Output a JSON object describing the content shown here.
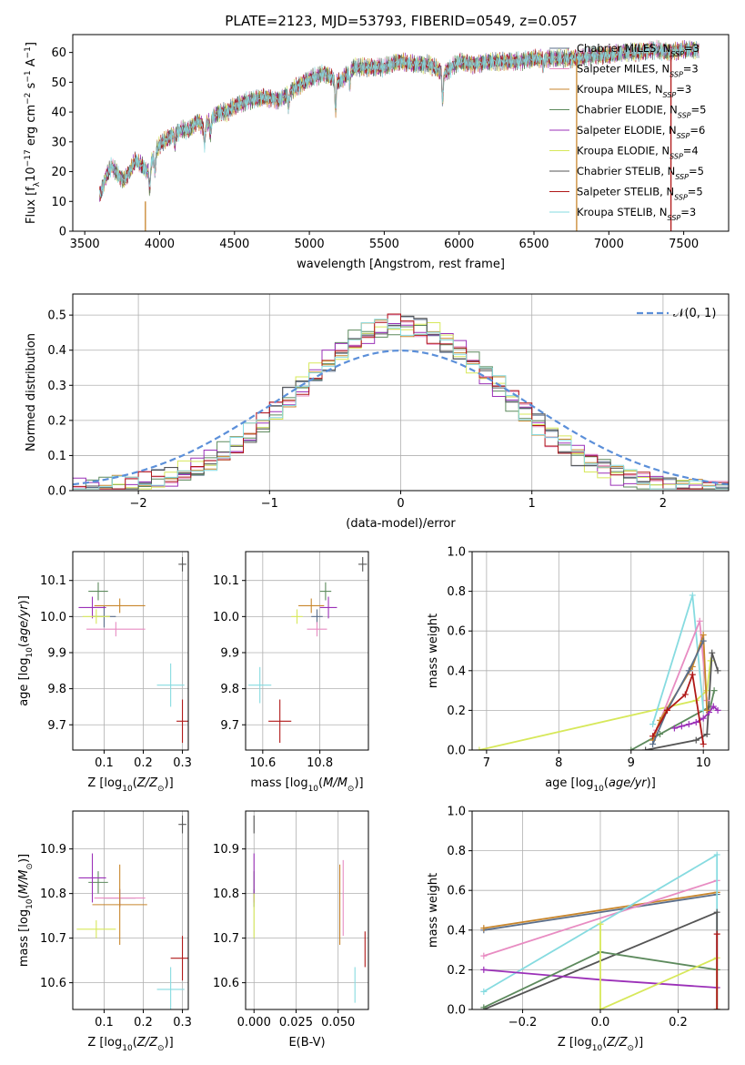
{
  "figure": {
    "title": "PLATE=2123, MJD=53793, FIBERID=0549, z=0.057"
  },
  "colors": {
    "Chabrier MILES": "#5a6e8a",
    "Salpeter MILES": "#e88cc2",
    "Kroupa MILES": "#c8862c",
    "Chabrier ELODIE": "#5d8a5d",
    "Salpeter ELODIE": "#9b30b8",
    "Kroupa ELODIE": "#d7e85a",
    "Chabrier STELIB": "#555555",
    "Salpeter STELIB": "#b01818",
    "Kroupa STELIB": "#86dbe0",
    "gauss": "#5b8fd9"
  },
  "chart_data": [
    {
      "id": "spectrum",
      "type": "line",
      "title": "PLATE=2123, MJD=53793, FIBERID=0549, z=0.057",
      "xlabel": "wavelength [Angstrom, rest frame]",
      "ylabel": "Flux [f_λ 10^-17 erg cm^-2 s^-1 A^-1]",
      "xlim": [
        3420,
        7800
      ],
      "ylim": [
        0,
        66
      ],
      "xticks": [
        3500,
        4000,
        4500,
        5000,
        5500,
        6000,
        6500,
        7000,
        7500
      ],
      "yticks": [
        0,
        10,
        20,
        30,
        40,
        50,
        60
      ],
      "legend_position": "upper right",
      "series": [
        {
          "name": "Chabrier MILES",
          "label_prefix": "Chabrier MILES, N",
          "label_sub": "SSP",
          "label_suffix": "=3"
        },
        {
          "name": "Salpeter MILES",
          "label_prefix": "Salpeter MILES, N",
          "label_sub": "SSP",
          "label_suffix": "=3"
        },
        {
          "name": "Kroupa MILES",
          "label_prefix": "Kroupa MILES, N",
          "label_sub": "SSP",
          "label_suffix": "=3"
        },
        {
          "name": "Chabrier ELODIE",
          "label_prefix": "Chabrier ELODIE, N",
          "label_sub": "SSP",
          "label_suffix": "=5"
        },
        {
          "name": "Salpeter ELODIE",
          "label_prefix": "Salpeter ELODIE, N",
          "label_sub": "SSP",
          "label_suffix": "=6"
        },
        {
          "name": "Kroupa ELODIE",
          "label_prefix": "Kroupa ELODIE, N",
          "label_sub": "SSP",
          "label_suffix": "=4"
        },
        {
          "name": "Chabrier STELIB",
          "label_prefix": "Chabrier STELIB, N",
          "label_sub": "SSP",
          "label_suffix": "=5"
        },
        {
          "name": "Salpeter STELIB",
          "label_prefix": "Salpeter STELIB, N",
          "label_sub": "SSP",
          "label_suffix": "=5"
        },
        {
          "name": "Kroupa STELIB",
          "label_prefix": "Kroupa STELIB, N",
          "label_sub": "SSP",
          "label_suffix": "=3"
        }
      ],
      "continuum": [
        [
          3600,
          12
        ],
        [
          3640,
          18
        ],
        [
          3680,
          22
        ],
        [
          3720,
          19
        ],
        [
          3760,
          17
        ],
        [
          3800,
          20
        ],
        [
          3840,
          24
        ],
        [
          3880,
          22
        ],
        [
          3920,
          20
        ],
        [
          3960,
          25
        ],
        [
          4000,
          29
        ],
        [
          4050,
          31
        ],
        [
          4100,
          33
        ],
        [
          4150,
          34
        ],
        [
          4200,
          34
        ],
        [
          4250,
          37
        ],
        [
          4300,
          35
        ],
        [
          4350,
          38
        ],
        [
          4400,
          40
        ],
        [
          4450,
          40
        ],
        [
          4500,
          42
        ],
        [
          4600,
          44
        ],
        [
          4700,
          45
        ],
        [
          4800,
          44
        ],
        [
          4900,
          48
        ],
        [
          5000,
          51
        ],
        [
          5100,
          53
        ],
        [
          5200,
          50
        ],
        [
          5300,
          55
        ],
        [
          5400,
          55
        ],
        [
          5500,
          55
        ],
        [
          5600,
          57
        ],
        [
          5700,
          56
        ],
        [
          5800,
          56
        ],
        [
          5900,
          53
        ],
        [
          6000,
          57
        ],
        [
          6100,
          56
        ],
        [
          6200,
          57
        ],
        [
          6300,
          57
        ],
        [
          6400,
          57
        ],
        [
          6500,
          58
        ],
        [
          6600,
          58
        ],
        [
          6700,
          58
        ],
        [
          6800,
          58
        ],
        [
          6900,
          59
        ],
        [
          7000,
          59
        ],
        [
          7100,
          60
        ],
        [
          7200,
          60
        ],
        [
          7300,
          61
        ],
        [
          7400,
          60
        ],
        [
          7500,
          61
        ],
        [
          7600,
          61
        ]
      ],
      "absorption_lines": [
        [
          3934,
          8
        ],
        [
          3969,
          6
        ],
        [
          4102,
          4
        ],
        [
          4300,
          6
        ],
        [
          4340,
          5
        ],
        [
          4861,
          5
        ],
        [
          5175,
          10
        ],
        [
          5270,
          4
        ],
        [
          5890,
          10
        ],
        [
          6563,
          3
        ]
      ],
      "drop_lines": [
        {
          "series": "Kroupa MILES",
          "x": 3905,
          "ymin": 0,
          "ymax": 10
        },
        {
          "series": "Kroupa MILES",
          "x": 6785,
          "ymin": 0,
          "ymax": 58
        },
        {
          "series": "Salpeter STELIB",
          "x": 7415,
          "ymin": 0,
          "ymax": 61
        }
      ]
    },
    {
      "id": "residual-hist",
      "type": "histogram",
      "xlabel": "(data-model)/error",
      "ylabel": "Normed distribution",
      "xlim": [
        -2.5,
        2.5
      ],
      "ylim": [
        0,
        0.56
      ],
      "xticks": [
        -2,
        -1,
        0,
        1,
        2
      ],
      "yticks": [
        0,
        0.1,
        0.2,
        0.3,
        0.4,
        0.5
      ],
      "grid": true,
      "legend_position": "upper right",
      "gaussian": {
        "label": "𝒩(0, 1)",
        "mu": 0,
        "sigma": 1
      },
      "bin_width": 0.1,
      "bins_start": -2.5,
      "bins_end": 2.5
    },
    {
      "id": "age-vs-Z",
      "type": "errorbar",
      "xlabel": "Z [log10(Z/Z⊙)]",
      "ylabel": "age  [log10(age/yr)]",
      "xlim": [
        0.02,
        0.315
      ],
      "ylim": [
        9.63,
        10.18
      ],
      "xticks": [
        0.1,
        0.2,
        0.3
      ],
      "yticks": [
        9.7,
        9.8,
        9.9,
        10.0,
        10.1
      ],
      "grid": true,
      "points": [
        {
          "series": "Chabrier MILES",
          "x": 0.1,
          "y": 10.0,
          "xerr": 0.03,
          "yerr": 0.03
        },
        {
          "series": "Salpeter MILES",
          "x": 0.13,
          "y": 9.965,
          "xerr": 0.075,
          "yerr": 0.02
        },
        {
          "series": "Kroupa MILES",
          "x": 0.14,
          "y": 10.03,
          "xerr": 0.065,
          "yerr": 0.02
        },
        {
          "series": "Chabrier ELODIE",
          "x": 0.085,
          "y": 10.07,
          "xerr": 0.025,
          "yerr": 0.025
        },
        {
          "series": "Salpeter ELODIE",
          "x": 0.07,
          "y": 10.025,
          "xerr": 0.035,
          "yerr": 0.03
        },
        {
          "series": "Kroupa ELODIE",
          "x": 0.08,
          "y": 10.0,
          "xerr": 0.035,
          "yerr": 0.02
        },
        {
          "series": "Chabrier STELIB",
          "x": 0.3,
          "y": 10.145,
          "xerr": 0.01,
          "yerr": 0.02
        },
        {
          "series": "Salpeter STELIB",
          "x": 0.3,
          "y": 9.71,
          "xerr": 0.015,
          "yerr": 0.06
        },
        {
          "series": "Kroupa STELIB",
          "x": 0.27,
          "y": 9.81,
          "xerr": 0.035,
          "yerr": 0.06
        }
      ]
    },
    {
      "id": "age-vs-mass",
      "type": "errorbar",
      "xlabel": "mass [log10(M/M⊙)]",
      "ylabel": "",
      "xlim": [
        10.54,
        10.97
      ],
      "ylim": [
        9.63,
        10.18
      ],
      "xticks": [
        10.6,
        10.8
      ],
      "yticks": [
        9.7,
        9.8,
        9.9,
        10.0,
        10.1
      ],
      "grid": true,
      "points": [
        {
          "series": "Chabrier MILES",
          "x": 10.79,
          "y": 10.0,
          "xerr": 0.02,
          "yerr": 0.02
        },
        {
          "series": "Salpeter MILES",
          "x": 10.79,
          "y": 9.965,
          "xerr": 0.035,
          "yerr": 0.02
        },
        {
          "series": "Kroupa MILES",
          "x": 10.77,
          "y": 10.03,
          "xerr": 0.045,
          "yerr": 0.02
        },
        {
          "series": "Chabrier ELODIE",
          "x": 10.82,
          "y": 10.07,
          "xerr": 0.02,
          "yerr": 0.025
        },
        {
          "series": "Salpeter ELODIE",
          "x": 10.83,
          "y": 10.025,
          "xerr": 0.03,
          "yerr": 0.03
        },
        {
          "series": "Kroupa ELODIE",
          "x": 10.72,
          "y": 10.0,
          "xerr": 0.02,
          "yerr": 0.02
        },
        {
          "series": "Chabrier STELIB",
          "x": 10.95,
          "y": 10.145,
          "xerr": 0.015,
          "yerr": 0.02
        },
        {
          "series": "Salpeter STELIB",
          "x": 10.66,
          "y": 9.71,
          "xerr": 0.04,
          "yerr": 0.06
        },
        {
          "series": "Kroupa STELIB",
          "x": 10.59,
          "y": 9.81,
          "xerr": 0.04,
          "yerr": 0.05
        }
      ]
    },
    {
      "id": "mass-weight-vs-age",
      "type": "line",
      "xlabel": "age  [log10(age/yr)]",
      "ylabel": "mass weight",
      "xlim": [
        6.8,
        10.35
      ],
      "ylim": [
        0,
        1.0
      ],
      "xticks": [
        7,
        8,
        9,
        10
      ],
      "yticks": [
        0.0,
        0.2,
        0.4,
        0.6,
        0.8,
        1.0
      ],
      "grid": true,
      "series": [
        {
          "name": "Kroupa ELODIE",
          "x": [
            6.9,
            9.9,
            10.05,
            10.1
          ],
          "y": [
            0.0,
            0.25,
            0.3,
            0.45
          ]
        },
        {
          "name": "Chabrier ELODIE",
          "x": [
            9.0,
            9.4,
            10.1,
            10.15
          ],
          "y": [
            0.0,
            0.08,
            0.22,
            0.3
          ]
        },
        {
          "name": "Chabrier STELIB",
          "x": [
            9.2,
            9.9,
            10.05,
            10.12,
            10.2
          ],
          "y": [
            0.0,
            0.05,
            0.08,
            0.49,
            0.4
          ]
        },
        {
          "name": "Salpeter ELODIE",
          "x": [
            9.6,
            9.7,
            9.8,
            9.9,
            10.0,
            10.08,
            10.14,
            10.2
          ],
          "y": [
            0.11,
            0.12,
            0.13,
            0.14,
            0.16,
            0.19,
            0.22,
            0.2
          ]
        },
        {
          "name": "Kroupa STELIB",
          "x": [
            9.3,
            9.85,
            10.0
          ],
          "y": [
            0.13,
            0.78,
            0.2
          ]
        },
        {
          "name": "Salpeter MILES",
          "x": [
            9.35,
            9.95,
            10.05
          ],
          "y": [
            0.1,
            0.65,
            0.25
          ]
        },
        {
          "name": "Kroupa MILES",
          "x": [
            9.3,
            9.4,
            9.85,
            10.0,
            10.05
          ],
          "y": [
            0.05,
            0.15,
            0.42,
            0.58,
            0.2
          ]
        },
        {
          "name": "Chabrier MILES",
          "x": [
            9.3,
            9.5,
            9.8,
            10.0
          ],
          "y": [
            0.03,
            0.2,
            0.4,
            0.55
          ]
        },
        {
          "name": "Salpeter STELIB",
          "x": [
            9.3,
            9.5,
            9.75,
            9.85,
            10.0
          ],
          "y": [
            0.07,
            0.2,
            0.28,
            0.38,
            0.03
          ]
        }
      ]
    },
    {
      "id": "mass-vs-Z",
      "type": "errorbar",
      "xlabel": "Z [log10(Z/Z⊙)]",
      "ylabel": "mass [log10(M/M⊙)]",
      "xlim": [
        0.02,
        0.315
      ],
      "ylim": [
        10.54,
        10.985
      ],
      "xticks": [
        0.1,
        0.2,
        0.3
      ],
      "yticks": [
        10.6,
        10.7,
        10.8,
        10.9
      ],
      "grid": true,
      "points": [
        {
          "series": "Chabrier MILES",
          "x": 0.14,
          "y": 10.79,
          "xerr": 0.04,
          "yerr": 0.02
        },
        {
          "series": "Salpeter MILES",
          "x": 0.14,
          "y": 10.79,
          "xerr": 0.065,
          "yerr": 0.02
        },
        {
          "series": "Kroupa MILES",
          "x": 0.14,
          "y": 10.775,
          "xerr": 0.07,
          "yerr": 0.09
        },
        {
          "series": "Chabrier ELODIE",
          "x": 0.085,
          "y": 10.825,
          "xerr": 0.025,
          "yerr": 0.025
        },
        {
          "series": "Salpeter ELODIE",
          "x": 0.07,
          "y": 10.835,
          "xerr": 0.035,
          "yerr": 0.055
        },
        {
          "series": "Kroupa ELODIE",
          "x": 0.08,
          "y": 10.72,
          "xerr": 0.05,
          "yerr": 0.02
        },
        {
          "series": "Chabrier STELIB",
          "x": 0.3,
          "y": 10.955,
          "xerr": 0.01,
          "yerr": 0.02
        },
        {
          "series": "Salpeter STELIB",
          "x": 0.3,
          "y": 10.655,
          "xerr": 0.03,
          "yerr": 0.05
        },
        {
          "series": "Kroupa STELIB",
          "x": 0.27,
          "y": 10.585,
          "xerr": 0.035,
          "yerr": 0.05
        }
      ]
    },
    {
      "id": "mass-vs-ebv",
      "type": "errorbar",
      "xlabel": "E(B-V)",
      "ylabel": "",
      "xlim": [
        -0.005,
        0.068
      ],
      "ylim": [
        10.54,
        10.985
      ],
      "xticks": [
        0.0,
        0.025,
        0.05
      ],
      "xtick_labels": [
        "0.000",
        "0.025",
        "0.050"
      ],
      "yticks": [
        10.6,
        10.7,
        10.8,
        10.9
      ],
      "grid": true,
      "points": [
        {
          "series": "Chabrier MILES",
          "x": 0.0,
          "y": 10.79,
          "xerr": 0.0,
          "yerr": 0.02
        },
        {
          "series": "Salpeter MILES",
          "x": 0.053,
          "y": 10.79,
          "xerr": 0.0,
          "yerr": 0.085
        },
        {
          "series": "Kroupa MILES",
          "x": 0.051,
          "y": 10.775,
          "xerr": 0.0,
          "yerr": 0.09
        },
        {
          "series": "Chabrier ELODIE",
          "x": 0.0,
          "y": 10.825,
          "xerr": 0.0,
          "yerr": 0.025
        },
        {
          "series": "Salpeter ELODIE",
          "x": 0.0,
          "y": 10.835,
          "xerr": 0.0,
          "yerr": 0.055
        },
        {
          "series": "Kroupa ELODIE",
          "x": 0.0,
          "y": 10.75,
          "xerr": 0.0,
          "yerr": 0.05
        },
        {
          "series": "Chabrier STELIB",
          "x": 0.0,
          "y": 10.955,
          "xerr": 0.0,
          "yerr": 0.02
        },
        {
          "series": "Salpeter STELIB",
          "x": 0.066,
          "y": 10.675,
          "xerr": 0.0,
          "yerr": 0.04
        },
        {
          "series": "Kroupa STELIB",
          "x": 0.06,
          "y": 10.595,
          "xerr": 0.0,
          "yerr": 0.04
        }
      ]
    },
    {
      "id": "mass-weight-vs-Z",
      "type": "line",
      "xlabel": "Z [log10(Z/Z⊙)]",
      "ylabel": "mass weight",
      "xlim": [
        -0.33,
        0.33
      ],
      "ylim": [
        0,
        1.0
      ],
      "xticks": [
        -0.2,
        0.0,
        0.2
      ],
      "yticks": [
        0.0,
        0.2,
        0.4,
        0.6,
        0.8,
        1.0
      ],
      "grid": true,
      "series": [
        {
          "name": "Chabrier MILES",
          "x": [
            -0.3,
            0.3
          ],
          "y": [
            0.4,
            0.58
          ]
        },
        {
          "name": "Kroupa MILES",
          "x": [
            -0.3,
            0.3
          ],
          "y": [
            0.41,
            0.59
          ]
        },
        {
          "name": "Salpeter MILES",
          "x": [
            -0.3,
            0.3
          ],
          "y": [
            0.27,
            0.65
          ]
        },
        {
          "name": "Kroupa STELIB",
          "x": [
            -0.3,
            0.3,
            0.3
          ],
          "y": [
            0.09,
            0.78,
            0.0
          ]
        },
        {
          "name": "Chabrier STELIB",
          "x": [
            -0.3,
            0.3,
            0.3
          ],
          "y": [
            0.0,
            0.49,
            0.0
          ]
        },
        {
          "name": "Salpeter ELODIE",
          "x": [
            -0.3,
            0.0,
            0.3
          ],
          "y": [
            0.2,
            0.15,
            0.11
          ]
        },
        {
          "name": "Chabrier ELODIE",
          "x": [
            -0.3,
            0.0,
            0.3
          ],
          "y": [
            0.01,
            0.29,
            0.2
          ]
        },
        {
          "name": "Kroupa ELODIE",
          "x": [
            0.0,
            0.0,
            0.3,
            0.3
          ],
          "y": [
            0.43,
            0.0,
            0.26,
            0.0
          ]
        },
        {
          "name": "Salpeter STELIB",
          "x": [
            0.3,
            0.3
          ],
          "y": [
            0.0,
            0.38
          ]
        }
      ]
    }
  ]
}
